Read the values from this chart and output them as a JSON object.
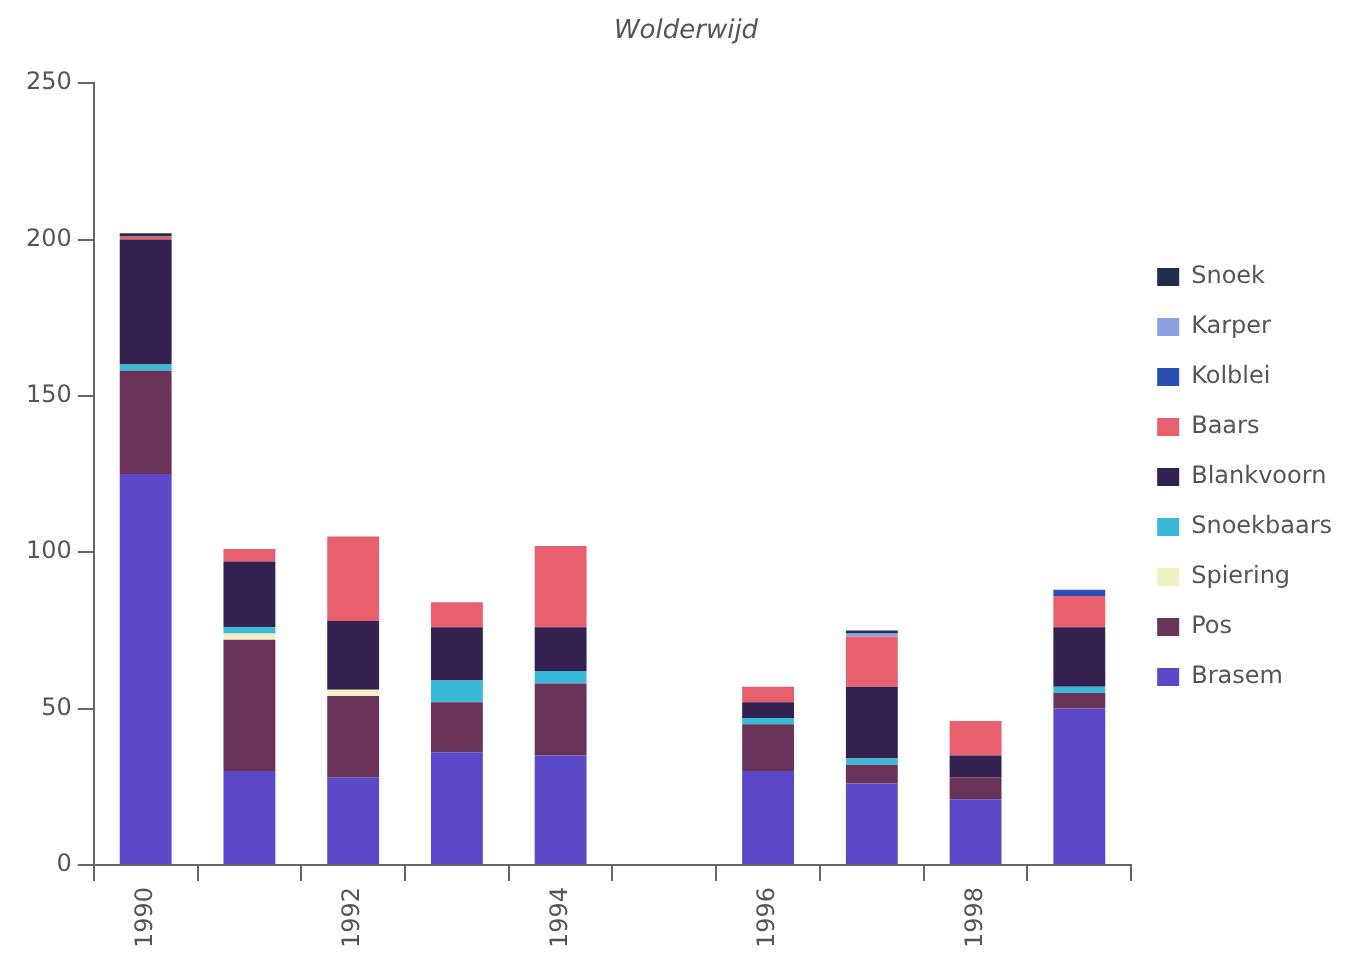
{
  "chart_data": {
    "type": "bar",
    "title": "Wolderwijd",
    "stacked": true,
    "legend": "right",
    "grid": false,
    "categories": [
      "1990",
      null,
      "1992",
      null,
      "1994",
      null,
      "1996",
      null,
      "1998",
      null
    ],
    "ylim": [
      0,
      250
    ],
    "yticks": [
      0,
      50,
      100,
      150,
      200,
      250
    ],
    "series": [
      {
        "name": "Brasem",
        "color": "#5a48c8",
        "values": [
          125,
          30,
          28,
          36,
          35,
          null,
          30,
          26,
          21,
          50
        ]
      },
      {
        "name": "Pos",
        "color": "#6a3358",
        "values": [
          33,
          42,
          26,
          16,
          23,
          null,
          15,
          6,
          7,
          5
        ]
      },
      {
        "name": "Spiering",
        "color": "#f0f0c0",
        "values": [
          0,
          2,
          2,
          0,
          0,
          null,
          0,
          0,
          0,
          0
        ]
      },
      {
        "name": "Snoekbaars",
        "color": "#3ab8d8",
        "values": [
          2,
          2,
          0,
          7,
          4,
          null,
          2,
          2,
          0,
          2
        ]
      },
      {
        "name": "Blankvoorn",
        "color": "#33224f",
        "values": [
          40,
          21,
          22,
          17,
          14,
          null,
          5,
          23,
          7,
          19
        ]
      },
      {
        "name": "Baars",
        "color": "#e8606e",
        "values": [
          1,
          4,
          27,
          8,
          26,
          null,
          5,
          16,
          11,
          10
        ]
      },
      {
        "name": "Kolblei",
        "color": "#2a4fb0",
        "values": [
          0,
          0,
          0,
          0,
          0,
          null,
          0,
          0,
          0,
          2
        ]
      },
      {
        "name": "Karper",
        "color": "#8fa0e0",
        "values": [
          0,
          0,
          0,
          0,
          0,
          null,
          0,
          1,
          0,
          0
        ]
      },
      {
        "name": "Snoek",
        "color": "#1f2e4f",
        "values": [
          1,
          0,
          0,
          0,
          0,
          null,
          0,
          1,
          0,
          0
        ]
      }
    ]
  }
}
